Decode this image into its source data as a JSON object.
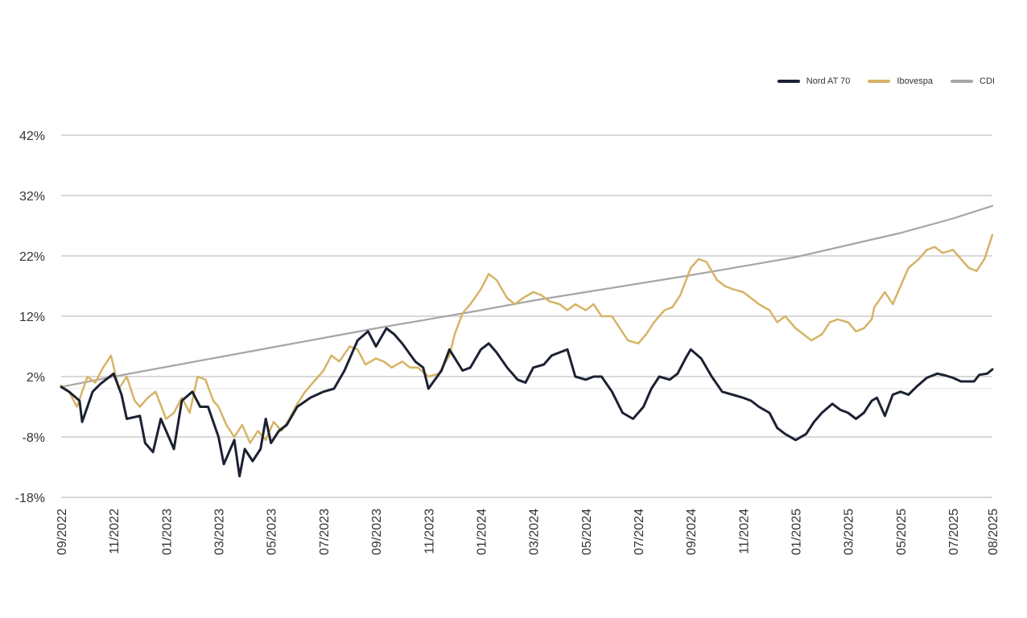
{
  "chart_data": {
    "type": "line",
    "title": "",
    "xlabel": "",
    "ylabel": "",
    "legend_position": "top-right",
    "grid": true,
    "y_tick_labels": [
      "-18%",
      "-8%",
      "2%",
      "12%",
      "22%",
      "32%",
      "42%"
    ],
    "y_tick_values": [
      -18,
      -8,
      2,
      12,
      22,
      32,
      42
    ],
    "ylim": [
      -18,
      42
    ],
    "x_tick_labels": [
      "09/2022",
      "11/2022",
      "01/2023",
      "03/2023",
      "05/2023",
      "07/2023",
      "09/2023",
      "11/2023",
      "01/2024",
      "03/2024",
      "05/2024",
      "07/2024",
      "09/2024",
      "11/2024",
      "01/2025",
      "03/2025",
      "05/2025",
      "07/2025",
      "08/2025"
    ],
    "x_tick_positions": [
      0,
      2,
      4,
      6,
      8,
      10,
      12,
      14,
      16,
      18,
      20,
      22,
      24,
      26,
      28,
      30,
      32,
      34,
      35.5
    ],
    "xlim": [
      0,
      35.5
    ],
    "series": [
      {
        "name": "Nord AT 70",
        "color": "#1c2233",
        "points": [
          [
            0,
            0.3
          ],
          [
            0.3,
            -0.5
          ],
          [
            0.7,
            -2
          ],
          [
            0.8,
            -5.5
          ],
          [
            1.2,
            -0.5
          ],
          [
            1.5,
            0.8
          ],
          [
            2,
            2.5
          ],
          [
            2.3,
            -1
          ],
          [
            2.5,
            -5
          ],
          [
            3,
            -4.5
          ],
          [
            3.2,
            -9
          ],
          [
            3.5,
            -10.5
          ],
          [
            3.8,
            -5
          ],
          [
            4,
            -7
          ],
          [
            4.3,
            -10
          ],
          [
            4.6,
            -2
          ],
          [
            5,
            -0.5
          ],
          [
            5.3,
            -3
          ],
          [
            5.6,
            -3
          ],
          [
            6,
            -8
          ],
          [
            6.2,
            -12.5
          ],
          [
            6.6,
            -8.5
          ],
          [
            6.8,
            -14.5
          ],
          [
            7,
            -10
          ],
          [
            7.3,
            -12
          ],
          [
            7.6,
            -10
          ],
          [
            7.8,
            -5
          ],
          [
            8,
            -9
          ],
          [
            8.3,
            -7
          ],
          [
            8.6,
            -6
          ],
          [
            9,
            -3
          ],
          [
            9.5,
            -1.5
          ],
          [
            10,
            -0.5
          ],
          [
            10.4,
            0
          ],
          [
            10.8,
            3
          ],
          [
            11.3,
            8
          ],
          [
            11.7,
            9.5
          ],
          [
            12,
            7
          ],
          [
            12.4,
            10
          ],
          [
            12.7,
            9
          ],
          [
            13,
            7.5
          ],
          [
            13.5,
            4.5
          ],
          [
            13.8,
            3.5
          ],
          [
            14,
            0
          ],
          [
            14.5,
            3
          ],
          [
            14.8,
            6.5
          ],
          [
            15.3,
            3
          ],
          [
            15.6,
            3.5
          ],
          [
            16,
            6.5
          ],
          [
            16.3,
            7.5
          ],
          [
            16.6,
            6
          ],
          [
            17,
            3.5
          ],
          [
            17.4,
            1.5
          ],
          [
            17.7,
            1
          ],
          [
            18,
            3.5
          ],
          [
            18.4,
            4
          ],
          [
            18.7,
            5.5
          ],
          [
            19,
            6
          ],
          [
            19.3,
            6.5
          ],
          [
            19.6,
            2
          ],
          [
            20,
            1.5
          ],
          [
            20.3,
            2
          ],
          [
            20.6,
            2
          ],
          [
            21,
            -0.5
          ],
          [
            21.4,
            -4
          ],
          [
            21.8,
            -5
          ],
          [
            22.2,
            -3
          ],
          [
            22.5,
            0
          ],
          [
            22.8,
            2
          ],
          [
            23.2,
            1.5
          ],
          [
            23.5,
            2.5
          ],
          [
            23.8,
            5
          ],
          [
            24,
            6.5
          ],
          [
            24.4,
            5
          ],
          [
            24.8,
            2
          ],
          [
            25.2,
            -0.5
          ],
          [
            25.6,
            -1
          ],
          [
            26,
            -1.5
          ],
          [
            26.3,
            -2
          ],
          [
            26.6,
            -3
          ],
          [
            27,
            -4
          ],
          [
            27.3,
            -6.5
          ],
          [
            27.6,
            -7.5
          ],
          [
            28,
            -8.5
          ],
          [
            28.4,
            -7.5
          ],
          [
            28.7,
            -5.5
          ],
          [
            29,
            -4
          ],
          [
            29.4,
            -2.5
          ],
          [
            29.7,
            -3.5
          ],
          [
            30,
            -4
          ],
          [
            30.3,
            -5
          ],
          [
            30.6,
            -4
          ],
          [
            30.9,
            -2
          ],
          [
            31.1,
            -1.5
          ],
          [
            31.4,
            -4.5
          ],
          [
            31.7,
            -1
          ],
          [
            32,
            -0.5
          ],
          [
            32.3,
            -1
          ],
          [
            32.6,
            0.3
          ],
          [
            33,
            1.8
          ],
          [
            33.4,
            2.5
          ],
          [
            33.7,
            2.2
          ],
          [
            34,
            1.8
          ],
          [
            34.3,
            1.2
          ],
          [
            34.6,
            1.2
          ],
          [
            34.8,
            1.2
          ],
          [
            35,
            2.3
          ],
          [
            35.3,
            2.5
          ],
          [
            35.5,
            3.2
          ]
        ]
      },
      {
        "name": "Ibovespa",
        "color": "#d6b466",
        "points": [
          [
            0,
            0.5
          ],
          [
            0.3,
            -0.5
          ],
          [
            0.6,
            -3
          ],
          [
            1,
            2
          ],
          [
            1.3,
            1
          ],
          [
            1.6,
            3.5
          ],
          [
            1.9,
            5.5
          ],
          [
            2.2,
            0
          ],
          [
            2.5,
            2
          ],
          [
            2.8,
            -2
          ],
          [
            3,
            -3
          ],
          [
            3.3,
            -1.5
          ],
          [
            3.6,
            -0.5
          ],
          [
            4,
            -5
          ],
          [
            4.3,
            -4
          ],
          [
            4.6,
            -1.5
          ],
          [
            4.9,
            -4
          ],
          [
            5.2,
            2
          ],
          [
            5.5,
            1.5
          ],
          [
            5.8,
            -2
          ],
          [
            6,
            -3
          ],
          [
            6.3,
            -6
          ],
          [
            6.6,
            -8
          ],
          [
            6.9,
            -6
          ],
          [
            7.2,
            -9
          ],
          [
            7.5,
            -7
          ],
          [
            7.8,
            -8.5
          ],
          [
            8.1,
            -5.5
          ],
          [
            8.4,
            -7
          ],
          [
            8.7,
            -5
          ],
          [
            9,
            -2.5
          ],
          [
            9.3,
            -0.5
          ],
          [
            9.6,
            1
          ],
          [
            10,
            3
          ],
          [
            10.3,
            5.5
          ],
          [
            10.6,
            4.5
          ],
          [
            11,
            7
          ],
          [
            11.3,
            6.5
          ],
          [
            11.6,
            4
          ],
          [
            12,
            5
          ],
          [
            12.3,
            4.5
          ],
          [
            12.6,
            3.5
          ],
          [
            13,
            4.5
          ],
          [
            13.3,
            3.5
          ],
          [
            13.6,
            3.5
          ],
          [
            14,
            2
          ],
          [
            14.4,
            2.5
          ],
          [
            14.8,
            5.5
          ],
          [
            15,
            9
          ],
          [
            15.3,
            12.5
          ],
          [
            15.6,
            14
          ],
          [
            16,
            16.5
          ],
          [
            16.3,
            19
          ],
          [
            16.6,
            18
          ],
          [
            17,
            15
          ],
          [
            17.3,
            14
          ],
          [
            17.6,
            15
          ],
          [
            18,
            16
          ],
          [
            18.3,
            15.5
          ],
          [
            18.6,
            14.5
          ],
          [
            19,
            14
          ],
          [
            19.3,
            13
          ],
          [
            19.6,
            14
          ],
          [
            20,
            13
          ],
          [
            20.3,
            14
          ],
          [
            20.6,
            12
          ],
          [
            21,
            12
          ],
          [
            21.3,
            10
          ],
          [
            21.6,
            8
          ],
          [
            22,
            7.5
          ],
          [
            22.3,
            9
          ],
          [
            22.6,
            11
          ],
          [
            23,
            13
          ],
          [
            23.3,
            13.5
          ],
          [
            23.6,
            15.5
          ],
          [
            24,
            20
          ],
          [
            24.3,
            21.5
          ],
          [
            24.6,
            21
          ],
          [
            25,
            18
          ],
          [
            25.3,
            17
          ],
          [
            25.6,
            16.5
          ],
          [
            26,
            16
          ],
          [
            26.3,
            15
          ],
          [
            26.6,
            14
          ],
          [
            27,
            13
          ],
          [
            27.3,
            11
          ],
          [
            27.6,
            12
          ],
          [
            28,
            10
          ],
          [
            28.3,
            9
          ],
          [
            28.6,
            8
          ],
          [
            29,
            9
          ],
          [
            29.3,
            11
          ],
          [
            29.6,
            11.5
          ],
          [
            30,
            11
          ],
          [
            30.3,
            9.5
          ],
          [
            30.6,
            10
          ],
          [
            30.9,
            11.5
          ],
          [
            31,
            13.5
          ],
          [
            31.4,
            16
          ],
          [
            31.7,
            14
          ],
          [
            32,
            17
          ],
          [
            32.3,
            20
          ],
          [
            32.7,
            21.5
          ],
          [
            33,
            23
          ],
          [
            33.3,
            23.5
          ],
          [
            33.6,
            22.5
          ],
          [
            34,
            23
          ],
          [
            34.3,
            21.5
          ],
          [
            34.6,
            20
          ],
          [
            34.9,
            19.5
          ],
          [
            35.2,
            21.5
          ],
          [
            35.5,
            25.5
          ]
        ]
      },
      {
        "name": "CDI",
        "color": "#a6a6a6",
        "points": [
          [
            0,
            0.3
          ],
          [
            2,
            2
          ],
          [
            4,
            3.6
          ],
          [
            6,
            5.2
          ],
          [
            8,
            6.8
          ],
          [
            10,
            8.4
          ],
          [
            12,
            10
          ],
          [
            14,
            11.5
          ],
          [
            16,
            13
          ],
          [
            18,
            14.6
          ],
          [
            20,
            16
          ],
          [
            22,
            17.4
          ],
          [
            24,
            18.8
          ],
          [
            26,
            20.3
          ],
          [
            28,
            21.8
          ],
          [
            30,
            23.8
          ],
          [
            32,
            25.8
          ],
          [
            34,
            28.2
          ],
          [
            35.5,
            30.3
          ]
        ]
      }
    ]
  }
}
